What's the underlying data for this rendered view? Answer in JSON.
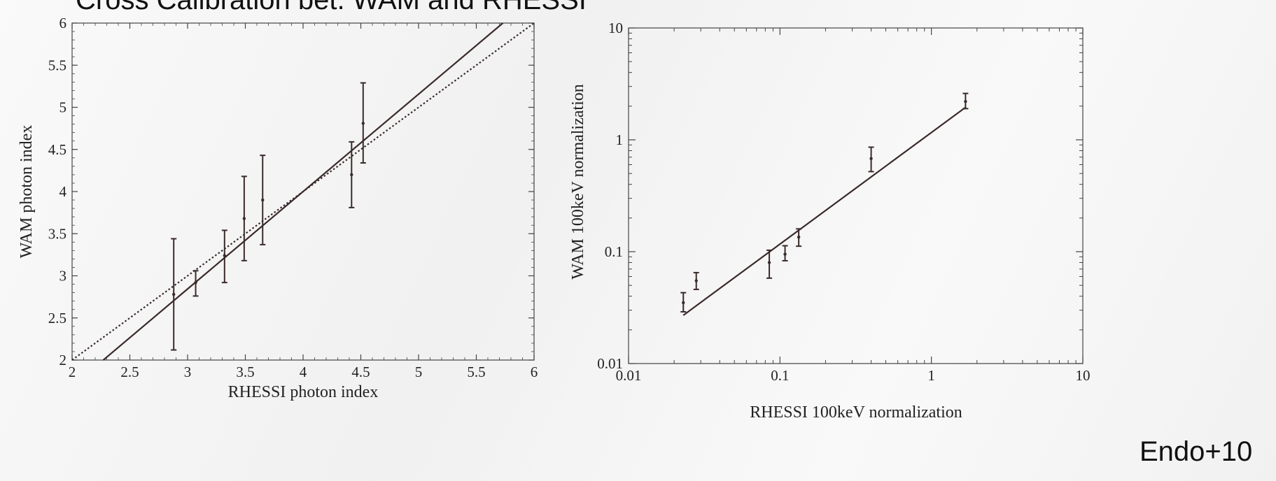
{
  "slide": {
    "title": "Cross Calibration bet. WAM and RHESSI",
    "credit": "Endo+10"
  },
  "colors": {
    "plot_line": "#3a2a2a",
    "frame": "#444444",
    "background": "#f3f3f3"
  },
  "chart_data": [
    {
      "type": "scatter",
      "title": "",
      "xlabel": "RHESSI photon index",
      "ylabel": "WAM photon index",
      "xlim": [
        2,
        6
      ],
      "ylim": [
        2,
        6
      ],
      "xticks": [
        2,
        2.5,
        3,
        3.5,
        4,
        4.5,
        5,
        5.5,
        6
      ],
      "yticks": [
        2,
        2.5,
        3,
        3.5,
        4,
        4.5,
        5,
        5.5,
        6
      ],
      "xtick_labels": [
        "2",
        "2.5",
        "3",
        "3.5",
        "4",
        "4.5",
        "5",
        "5.5",
        "6"
      ],
      "ytick_labels": [
        "2",
        "2.5",
        "3",
        "3.5",
        "4",
        "4.5",
        "5",
        "5.5",
        "6"
      ],
      "grid": false,
      "points": [
        {
          "x": 2.88,
          "y": 2.78,
          "ylow": 2.12,
          "yhigh": 3.44
        },
        {
          "x": 3.07,
          "y": 2.92,
          "ylow": 2.76,
          "yhigh": 3.06
        },
        {
          "x": 3.32,
          "y": 3.24,
          "ylow": 2.92,
          "yhigh": 3.54
        },
        {
          "x": 3.49,
          "y": 3.68,
          "ylow": 3.18,
          "yhigh": 4.18
        },
        {
          "x": 3.65,
          "y": 3.9,
          "ylow": 3.37,
          "yhigh": 4.43
        },
        {
          "x": 4.42,
          "y": 4.2,
          "ylow": 3.81,
          "yhigh": 4.59
        },
        {
          "x": 4.52,
          "y": 4.81,
          "ylow": 4.34,
          "yhigh": 5.29
        }
      ],
      "lines": [
        {
          "style": "solid",
          "x": [
            2.27,
            5.73
          ],
          "y": [
            2.0,
            6.0
          ]
        },
        {
          "style": "dotted",
          "x": [
            2.0,
            6.0
          ],
          "y": [
            2.0,
            6.0
          ]
        }
      ]
    },
    {
      "type": "scatter",
      "title": "",
      "xlabel": "RHESSI 100keV normalization",
      "ylabel": "WAM 100keV normalization",
      "xscale": "log",
      "yscale": "log",
      "xlim": [
        0.01,
        10
      ],
      "ylim": [
        0.01,
        10
      ],
      "xticks": [
        0.01,
        0.1,
        1,
        10
      ],
      "yticks": [
        0.01,
        0.1,
        1,
        10
      ],
      "xtick_labels": [
        "0.01",
        "0.1",
        "1",
        "10"
      ],
      "ytick_labels": [
        "0.01",
        "0.1",
        "1",
        "10"
      ],
      "grid": false,
      "points": [
        {
          "x": 0.023,
          "y": 0.035,
          "ylow": 0.029,
          "yhigh": 0.043
        },
        {
          "x": 0.028,
          "y": 0.055,
          "ylow": 0.046,
          "yhigh": 0.065
        },
        {
          "x": 0.085,
          "y": 0.08,
          "ylow": 0.058,
          "yhigh": 0.103
        },
        {
          "x": 0.108,
          "y": 0.095,
          "ylow": 0.083,
          "yhigh": 0.113
        },
        {
          "x": 0.133,
          "y": 0.135,
          "ylow": 0.112,
          "yhigh": 0.16
        },
        {
          "x": 0.4,
          "y": 0.68,
          "ylow": 0.52,
          "yhigh": 0.86
        },
        {
          "x": 1.68,
          "y": 2.2,
          "ylow": 1.9,
          "yhigh": 2.6
        }
      ],
      "lines": [
        {
          "style": "solid",
          "x": [
            0.023,
            1.68
          ],
          "y": [
            0.027,
            1.95
          ]
        }
      ]
    }
  ]
}
